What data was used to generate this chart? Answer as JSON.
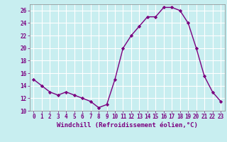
{
  "x": [
    0,
    1,
    2,
    3,
    4,
    5,
    6,
    7,
    8,
    9,
    10,
    11,
    12,
    13,
    14,
    15,
    16,
    17,
    18,
    19,
    20,
    21,
    22,
    23
  ],
  "y": [
    15,
    14,
    13,
    12.5,
    13,
    12.5,
    12,
    11.5,
    10.5,
    11,
    15,
    20,
    22,
    23.5,
    25,
    25,
    26.5,
    26.5,
    26,
    24,
    20,
    15.5,
    13,
    11.5
  ],
  "line_color": "#7B0080",
  "marker": "D",
  "marker_size": 2.2,
  "bg_color": "#c8eef0",
  "grid_color": "#ffffff",
  "xlabel": "Windchill (Refroidissement éolien,°C)",
  "xlabel_fontsize": 6.5,
  "ylim": [
    10,
    27
  ],
  "xlim": [
    -0.5,
    23.5
  ],
  "yticks": [
    10,
    12,
    14,
    16,
    18,
    20,
    22,
    24,
    26
  ],
  "xticks": [
    0,
    1,
    2,
    3,
    4,
    5,
    6,
    7,
    8,
    9,
    10,
    11,
    12,
    13,
    14,
    15,
    16,
    17,
    18,
    19,
    20,
    21,
    22,
    23
  ],
  "tick_fontsize": 5.5,
  "line_width": 1.0
}
